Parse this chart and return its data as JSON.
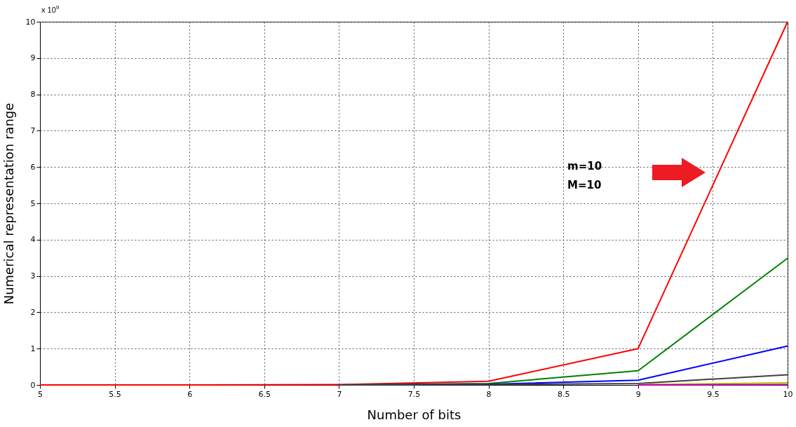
{
  "chart_data": {
    "type": "line",
    "xlabel": "Number of bits",
    "ylabel": "Numerical representation range",
    "x": [
      5,
      6,
      7,
      8,
      9,
      10
    ],
    "series": [
      {
        "color": "#ff0000",
        "values": [
          0,
          0,
          0.01,
          0.1,
          1,
          10
        ]
      },
      {
        "color": "#008000",
        "values": [
          null,
          null,
          0,
          0.04,
          0.39,
          3.49
        ]
      },
      {
        "color": "#0000ff",
        "values": [
          null,
          null,
          0,
          0.02,
          0.13,
          1.07
        ]
      },
      {
        "color": "#404040",
        "values": [
          null,
          null,
          0,
          0.01,
          0.04,
          0.28
        ]
      },
      {
        "color": "#bfbf00",
        "values": [
          null,
          null,
          null,
          null,
          0.01,
          0.06
        ]
      },
      {
        "color": "#bf00bf",
        "values": [
          null,
          null,
          null,
          null,
          0,
          0.01
        ]
      }
    ],
    "xlim": [
      5,
      10
    ],
    "xticks": [
      5,
      5.5,
      6,
      6.5,
      7,
      7.5,
      8,
      8.5,
      9,
      9.5,
      10
    ],
    "ylim": [
      0,
      10
    ],
    "yticks": [
      0,
      1,
      2,
      3,
      4,
      5,
      6,
      7,
      8,
      9,
      10
    ],
    "grid": true,
    "legend": false,
    "marker": "none",
    "line_style": "solid",
    "annotations": [
      "x 10$^{9}$",
      "m=10\nM=10"
    ]
  }
}
